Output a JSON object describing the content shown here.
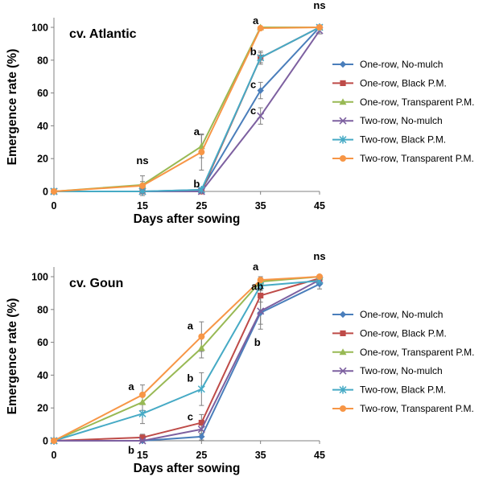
{
  "chart_data": [
    {
      "type": "line",
      "panel_title": "cv. Atlantic",
      "xlabel": "Days after sowing",
      "ylabel": "Emergence rate (%)",
      "x": [
        0,
        15,
        25,
        35,
        45
      ],
      "xlim": [
        0,
        45
      ],
      "ylim": [
        0,
        100
      ],
      "yticks": [
        0,
        20,
        40,
        60,
        80,
        100
      ],
      "legend_position": "right",
      "series": [
        {
          "name": "One-row, No-mulch",
          "color": "#4a7ebb",
          "marker": "diamond",
          "values": [
            0,
            0,
            1,
            61.5,
            100
          ],
          "err": [
            0,
            0,
            0,
            5,
            0
          ]
        },
        {
          "name": "One-row, Black P.M.",
          "color": "#be4b48",
          "marker": "square",
          "values": [
            0,
            0,
            0,
            81.5,
            100
          ],
          "err": [
            0,
            0,
            0,
            3,
            0
          ]
        },
        {
          "name": "One-row, Transparent P.M.",
          "color": "#98b954",
          "marker": "triangle",
          "values": [
            0,
            4,
            27.5,
            100,
            100
          ],
          "err": [
            0,
            2,
            7,
            0,
            0
          ]
        },
        {
          "name": "Two-row, No-mulch",
          "color": "#7d60a0",
          "marker": "x",
          "values": [
            0,
            0,
            0,
            46,
            98
          ],
          "err": [
            0,
            0,
            0,
            5,
            2
          ]
        },
        {
          "name": "Two-row, Black P.M.",
          "color": "#46aac5",
          "marker": "star",
          "values": [
            0,
            0,
            1,
            81.5,
            100
          ],
          "err": [
            0,
            0,
            0,
            4,
            0
          ]
        },
        {
          "name": "Two-row, Transparent P.M.",
          "color": "#f79646",
          "marker": "circle",
          "values": [
            0,
            3.5,
            24,
            99.5,
            100
          ],
          "err": [
            0,
            6,
            11,
            0,
            0
          ]
        }
      ],
      "annotations": [
        {
          "text": "ns",
          "x": 15,
          "y": 4
        },
        {
          "text": "ns",
          "x": 45,
          "y": 100
        },
        {
          "text": "a",
          "x": 25,
          "y": 27.5
        },
        {
          "text": "b",
          "x": 25,
          "y": 1
        },
        {
          "text": "a",
          "x": 35,
          "y": 100
        },
        {
          "text": "b",
          "x": 35,
          "y": 81.5
        },
        {
          "text": "c",
          "x": 35,
          "y": 61.5
        },
        {
          "text": "c",
          "x": 35,
          "y": 46
        }
      ]
    },
    {
      "type": "line",
      "panel_title": "cv. Goun",
      "xlabel": "Days after sowing",
      "ylabel": "Emergence rate (%)",
      "x": [
        0,
        15,
        25,
        35,
        45
      ],
      "xlim": [
        0,
        45
      ],
      "ylim": [
        0,
        100
      ],
      "yticks": [
        0,
        20,
        40,
        60,
        80,
        100
      ],
      "legend_position": "right",
      "series": [
        {
          "name": "One-row, No-mulch",
          "color": "#4a7ebb",
          "marker": "diamond",
          "values": [
            0,
            0,
            2.5,
            78,
            95.5
          ],
          "err": [
            0,
            0,
            2,
            10,
            3
          ]
        },
        {
          "name": "One-row, Black P.M.",
          "color": "#be4b48",
          "marker": "square",
          "values": [
            0,
            2,
            11,
            88.5,
            99
          ],
          "err": [
            0,
            2,
            5,
            4,
            1
          ]
        },
        {
          "name": "One-row, Transparent P.M.",
          "color": "#98b954",
          "marker": "triangle",
          "values": [
            0,
            23.5,
            56.5,
            97,
            100
          ],
          "err": [
            0,
            5,
            6,
            2,
            0
          ]
        },
        {
          "name": "Two-row, No-mulch",
          "color": "#7d60a0",
          "marker": "x",
          "values": [
            0,
            0,
            7,
            79,
            98
          ],
          "err": [
            0,
            0,
            3,
            8,
            2
          ]
        },
        {
          "name": "Two-row, Black P.M.",
          "color": "#46aac5",
          "marker": "star",
          "values": [
            0,
            16.5,
            31.5,
            94.5,
            97.5
          ],
          "err": [
            0,
            6,
            10,
            3,
            2
          ]
        },
        {
          "name": "Two-row, Transparent P.M.",
          "color": "#f79646",
          "marker": "circle",
          "values": [
            0,
            28,
            63.5,
            98,
            100
          ],
          "err": [
            0,
            6,
            9,
            2,
            0
          ]
        }
      ],
      "annotations": [
        {
          "text": "a",
          "x": 15,
          "y": 28
        },
        {
          "text": "b",
          "x": 15,
          "y": 0
        },
        {
          "text": "a",
          "x": 25,
          "y": 63.5
        },
        {
          "text": "b",
          "x": 25,
          "y": 31.5
        },
        {
          "text": "c",
          "x": 25,
          "y": 11
        },
        {
          "text": "a",
          "x": 35,
          "y": 98
        },
        {
          "text": "ab",
          "x": 35,
          "y": 88.5
        },
        {
          "text": "b",
          "x": 35,
          "y": 78
        },
        {
          "text": "ns",
          "x": 45,
          "y": 100
        }
      ]
    }
  ]
}
